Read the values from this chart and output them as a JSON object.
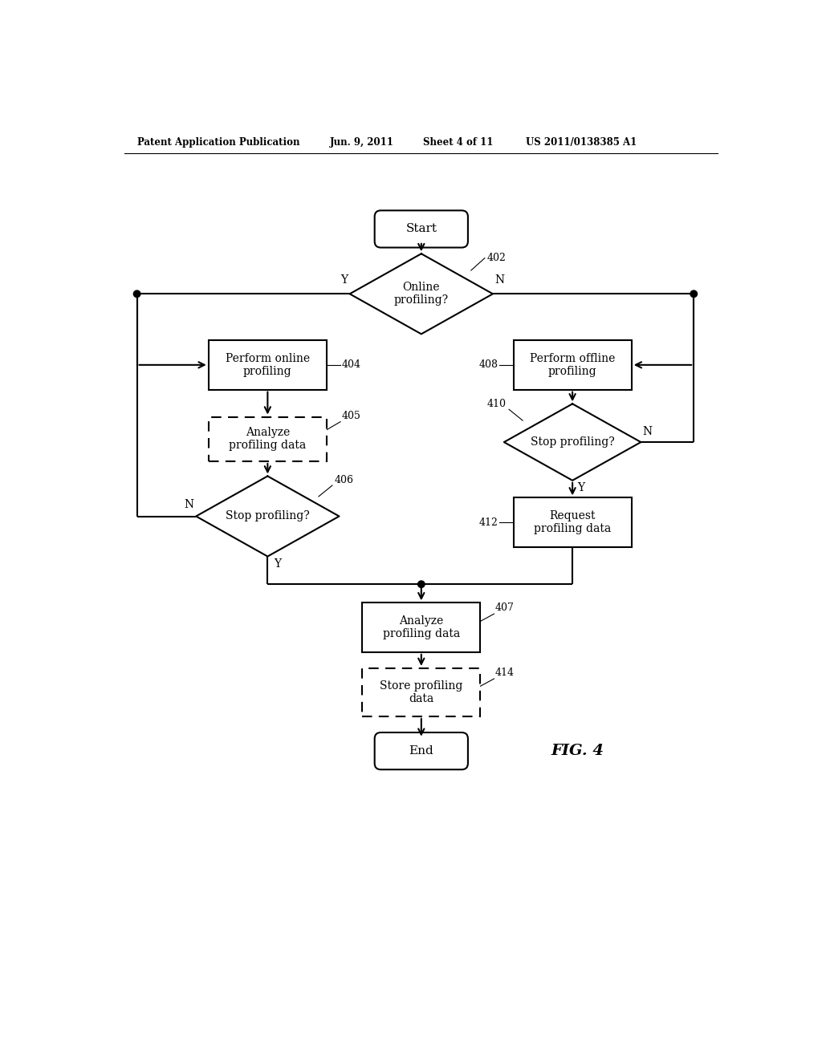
{
  "bg_color": "#ffffff",
  "header_left": "Patent Application Publication",
  "header_mid1": "Jun. 9, 2011",
  "header_mid2": "Sheet 4 of 11",
  "header_right": "US 2011/0138385 A1",
  "fig_label": "FIG. 4",
  "lw": 1.5,
  "fontsize_body": 10,
  "fontsize_label": 9,
  "fontsize_yn": 10
}
